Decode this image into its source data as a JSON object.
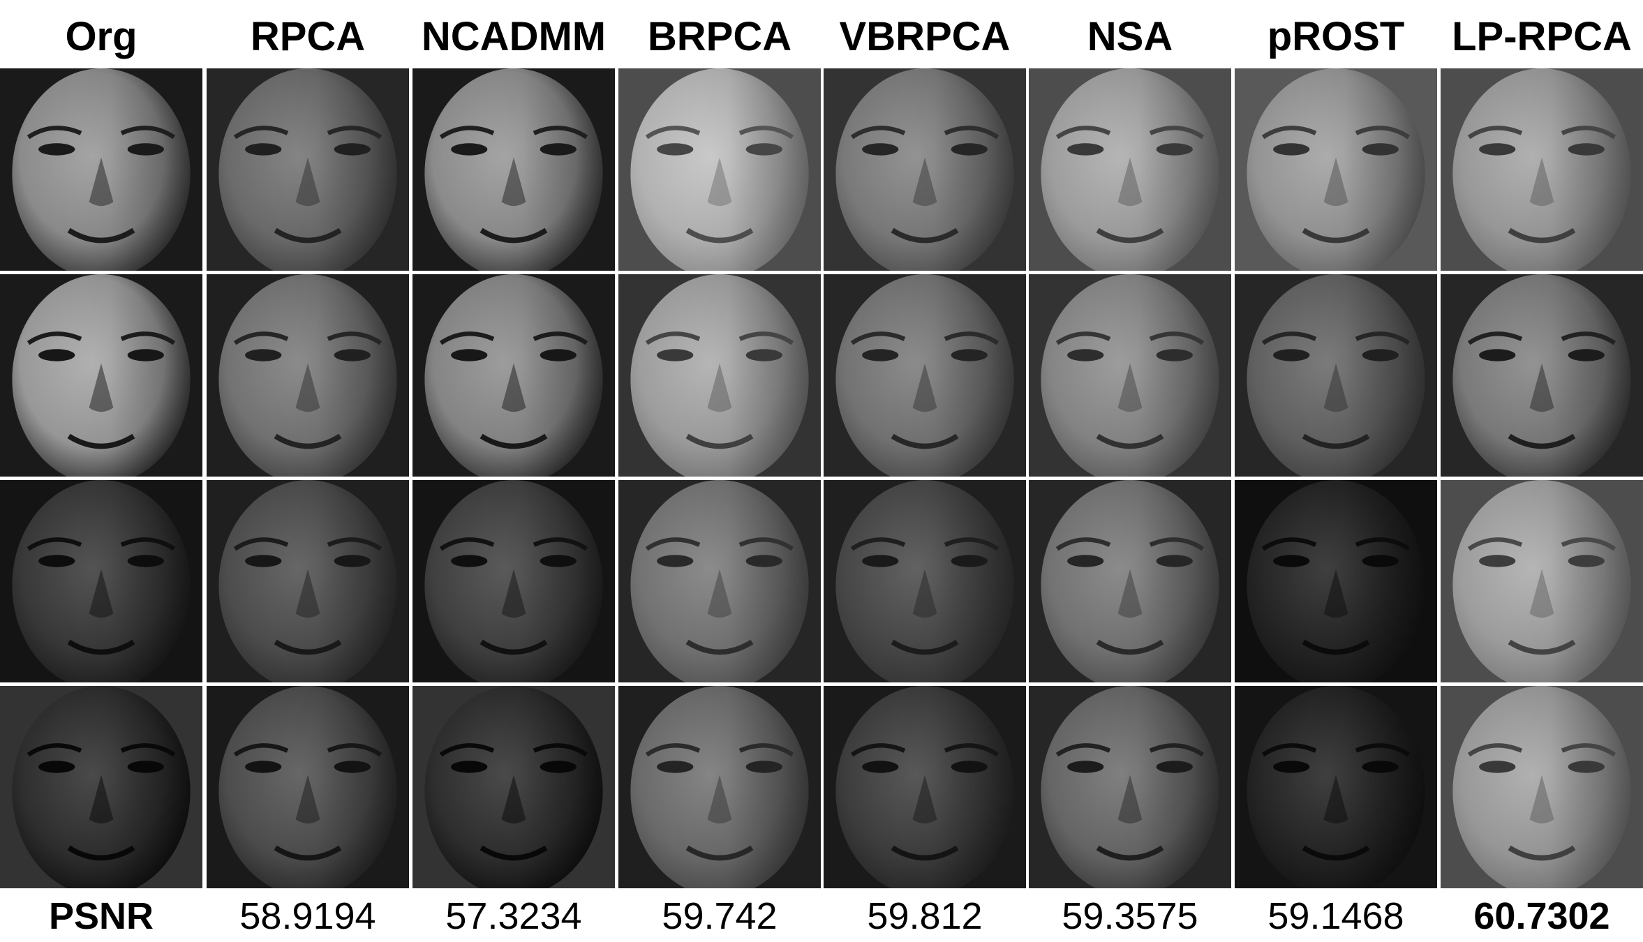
{
  "figure": {
    "columns": [
      "Org",
      "RPCA",
      "NCADMM",
      "BRPCA",
      "VBRPCA",
      "NSA",
      "pROST",
      "LP-RPCA"
    ],
    "psnr_label": "PSNR",
    "psnr_values": [
      "",
      "58.9194",
      "57.3234",
      "59.742",
      "59.812",
      "59.3575",
      "59.1468",
      "60.7302"
    ],
    "best_column": 7,
    "tiles": [
      [
        {
          "face": 0.55,
          "shadow": 0.2,
          "bg": 0.1
        },
        {
          "face": 0.42,
          "shadow": 0.25,
          "bg": 0.15
        },
        {
          "face": 0.55,
          "shadow": 0.2,
          "bg": 0.1
        },
        {
          "face": 0.7,
          "shadow": 0.55,
          "bg": 0.3
        },
        {
          "face": 0.48,
          "shadow": 0.3,
          "bg": 0.2
        },
        {
          "face": 0.62,
          "shadow": 0.45,
          "bg": 0.3
        },
        {
          "face": 0.58,
          "shadow": 0.4,
          "bg": 0.35
        },
        {
          "face": 0.6,
          "shadow": 0.45,
          "bg": 0.3
        }
      ],
      [
        {
          "face": 0.6,
          "shadow": 0.18,
          "bg": 0.1
        },
        {
          "face": 0.45,
          "shadow": 0.25,
          "bg": 0.12
        },
        {
          "face": 0.52,
          "shadow": 0.18,
          "bg": 0.1
        },
        {
          "face": 0.62,
          "shadow": 0.45,
          "bg": 0.2
        },
        {
          "face": 0.45,
          "shadow": 0.28,
          "bg": 0.15
        },
        {
          "face": 0.52,
          "shadow": 0.35,
          "bg": 0.2
        },
        {
          "face": 0.38,
          "shadow": 0.25,
          "bg": 0.15
        },
        {
          "face": 0.48,
          "shadow": 0.22,
          "bg": 0.15
        }
      ],
      [
        {
          "face": 0.22,
          "shadow": 0.1,
          "bg": 0.08
        },
        {
          "face": 0.3,
          "shadow": 0.18,
          "bg": 0.12
        },
        {
          "face": 0.25,
          "shadow": 0.12,
          "bg": 0.08
        },
        {
          "face": 0.45,
          "shadow": 0.32,
          "bg": 0.15
        },
        {
          "face": 0.28,
          "shadow": 0.2,
          "bg": 0.12
        },
        {
          "face": 0.45,
          "shadow": 0.3,
          "bg": 0.15
        },
        {
          "face": 0.14,
          "shadow": 0.08,
          "bg": 0.06
        },
        {
          "face": 0.62,
          "shadow": 0.48,
          "bg": 0.3
        }
      ],
      [
        {
          "face": 0.18,
          "shadow": 0.06,
          "bg": 0.2
        },
        {
          "face": 0.3,
          "shadow": 0.15,
          "bg": 0.1
        },
        {
          "face": 0.18,
          "shadow": 0.06,
          "bg": 0.2
        },
        {
          "face": 0.42,
          "shadow": 0.28,
          "bg": 0.12
        },
        {
          "face": 0.24,
          "shadow": 0.14,
          "bg": 0.1
        },
        {
          "face": 0.4,
          "shadow": 0.22,
          "bg": 0.15
        },
        {
          "face": 0.14,
          "shadow": 0.07,
          "bg": 0.08
        },
        {
          "face": 0.6,
          "shadow": 0.45,
          "bg": 0.3
        }
      ]
    ]
  }
}
